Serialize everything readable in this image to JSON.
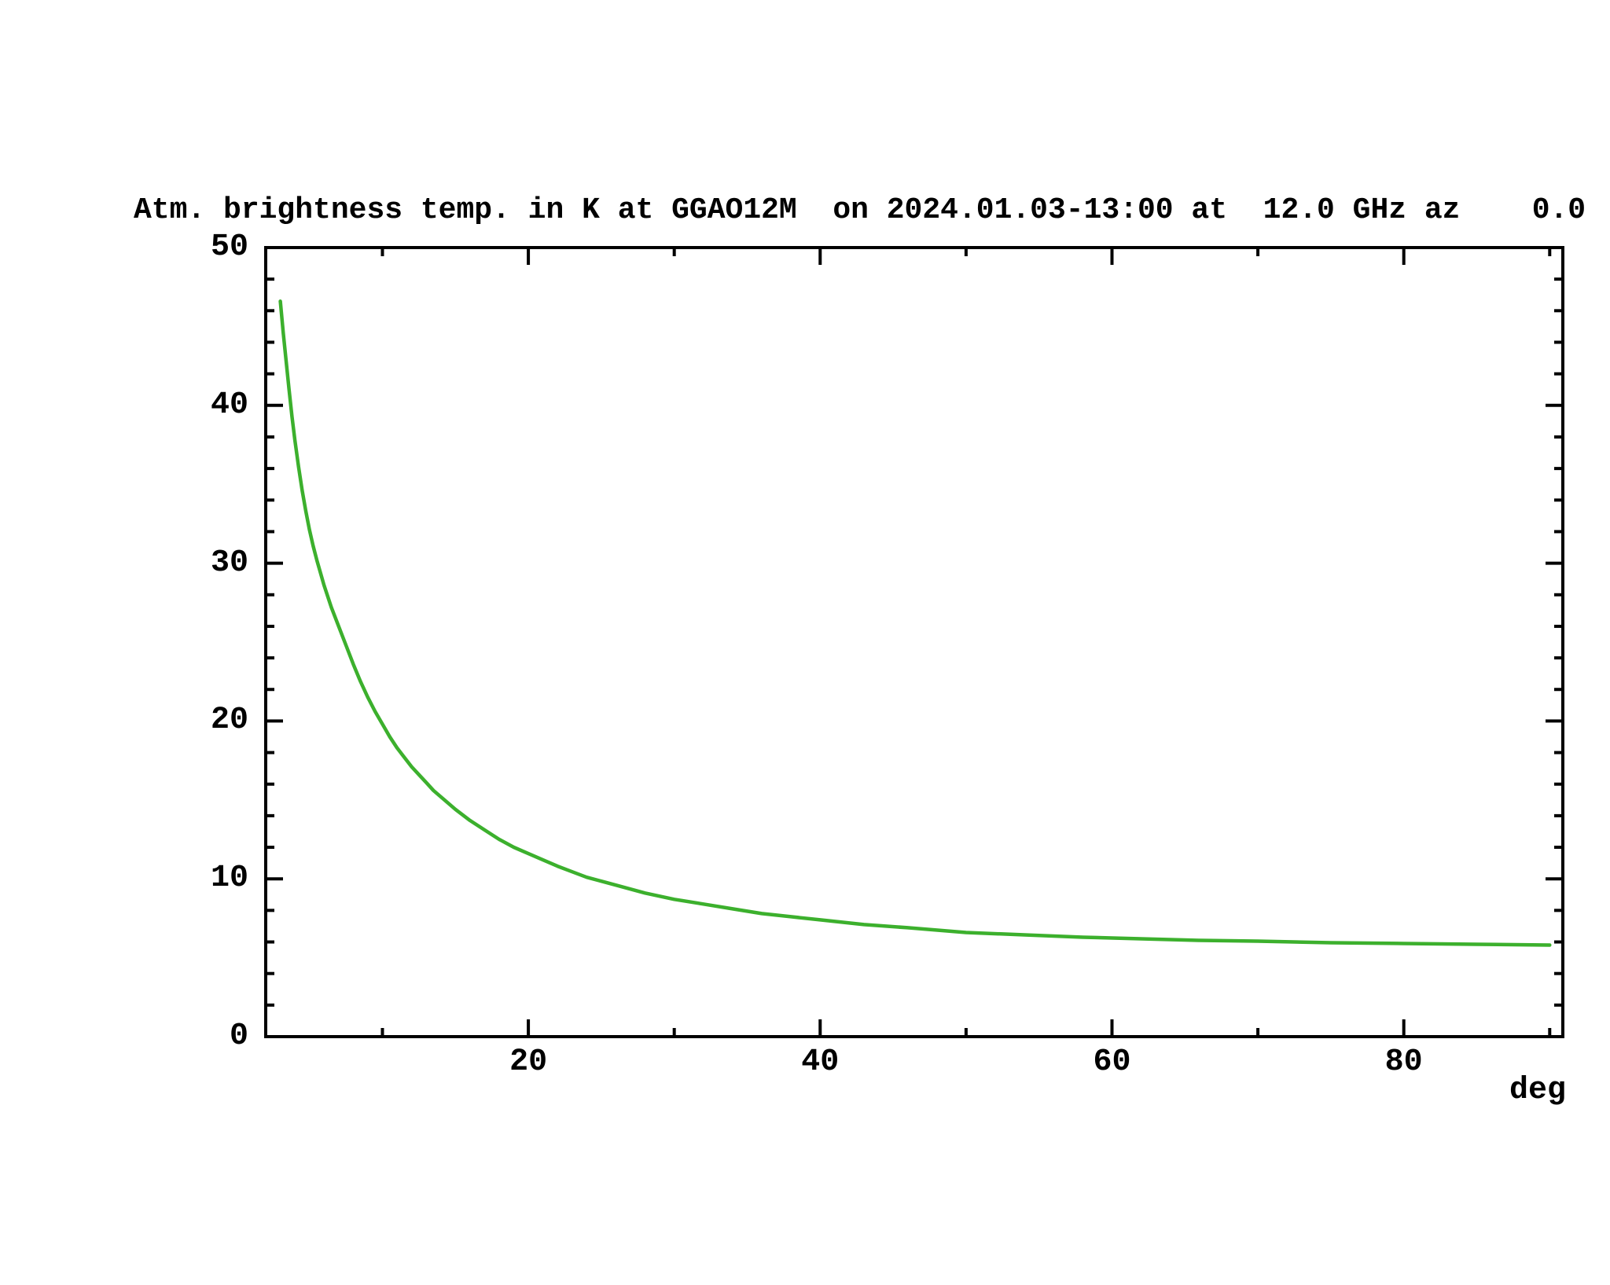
{
  "chart_data": {
    "type": "line",
    "title": "Atm. brightness temp. in K at GGAO12M  on 2024.01.03-13:00 at  12.0 GHz az    0.0",
    "xlabel": "deg",
    "ylabel": "",
    "x_range": [
      2.0,
      90.9
    ],
    "y_range": [
      0,
      50
    ],
    "x_major_ticks": [
      20,
      40,
      60,
      80
    ],
    "x_minor_ticks": [
      10,
      30,
      50,
      70,
      90
    ],
    "y_major_ticks": [
      0,
      10,
      20,
      30,
      40,
      50
    ],
    "y_minor_ticks": [
      2,
      4,
      6,
      8,
      12,
      14,
      16,
      18,
      22,
      24,
      26,
      28,
      32,
      34,
      36,
      38,
      42,
      44,
      46,
      48
    ],
    "grid": false,
    "legend_position": "none",
    "axis_color": "#000000",
    "background_color": "#ffffff",
    "series": [
      {
        "name": "atmospheric-brightness-temperature",
        "color": "#3cb02d",
        "x": [
          3,
          3.2,
          3.4,
          3.6,
          3.8,
          4,
          4.25,
          4.5,
          4.75,
          5,
          5.25,
          5.5,
          5.75,
          6,
          6.5,
          7,
          7.5,
          8,
          8.5,
          9,
          9.5,
          10,
          10.5,
          11,
          11.5,
          12,
          12.5,
          13,
          13.5,
          14,
          14.5,
          15,
          16,
          17,
          18,
          19,
          20,
          21,
          22,
          23,
          24,
          25,
          26,
          28,
          30,
          32,
          34,
          36,
          38,
          40,
          43,
          46,
          50,
          54,
          58,
          62,
          66,
          70,
          75,
          80,
          85,
          90
        ],
        "y": [
          46.6,
          44.6,
          42.8,
          41.0,
          39.3,
          37.8,
          36.1,
          34.6,
          33.3,
          32.1,
          31.1,
          30.2,
          29.4,
          28.6,
          27.2,
          26.0,
          24.8,
          23.6,
          22.5,
          21.5,
          20.6,
          19.8,
          19.0,
          18.3,
          17.7,
          17.1,
          16.6,
          16.1,
          15.6,
          15.2,
          14.8,
          14.4,
          13.7,
          13.1,
          12.5,
          12.0,
          11.6,
          11.2,
          10.8,
          10.45,
          10.1,
          9.85,
          9.6,
          9.1,
          8.7,
          8.4,
          8.1,
          7.8,
          7.6,
          7.4,
          7.1,
          6.9,
          6.6,
          6.45,
          6.3,
          6.2,
          6.1,
          6.05,
          5.95,
          5.9,
          5.85,
          5.8
        ]
      }
    ]
  }
}
